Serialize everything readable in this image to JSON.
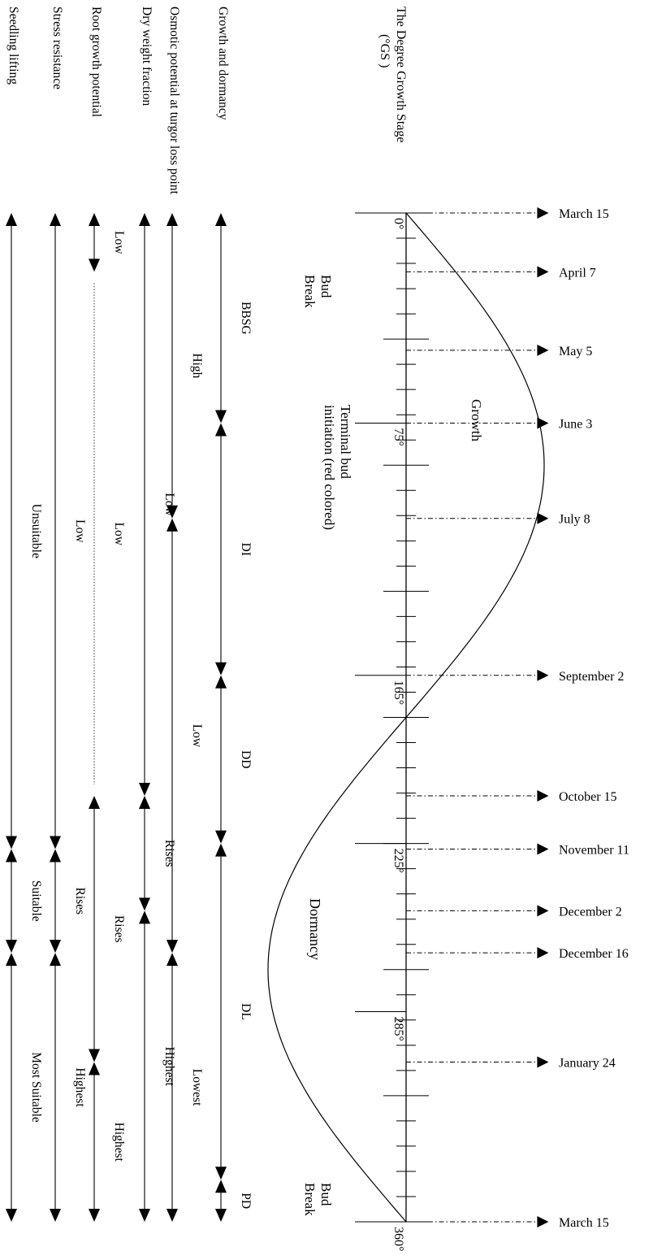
{
  "degree_axis": {
    "title_line1": "The Degree Growth  Stage",
    "title_line2": "(°GS )",
    "ticks": [
      {
        "deg": 0,
        "label": "0°"
      },
      {
        "deg": 75,
        "label": "75°"
      },
      {
        "deg": 165,
        "label": "165°"
      },
      {
        "deg": 225,
        "label": "225°"
      },
      {
        "deg": 285,
        "label": "285°"
      },
      {
        "deg": 360,
        "label": "360°"
      }
    ]
  },
  "dates": [
    {
      "deg": 0,
      "label": "March 15"
    },
    {
      "deg": 21,
      "label": "April 7"
    },
    {
      "deg": 49,
      "label": "May 5"
    },
    {
      "deg": 75,
      "label": "June 3"
    },
    {
      "deg": 109,
      "label": "July 8"
    },
    {
      "deg": 165,
      "label": "September 2"
    },
    {
      "deg": 208,
      "label": "October 15"
    },
    {
      "deg": 227,
      "label": "November 11"
    },
    {
      "deg": 249,
      "label": "December 2"
    },
    {
      "deg": 264,
      "label": "December 16"
    },
    {
      "deg": 303,
      "label": "January 24"
    },
    {
      "deg": 360,
      "label": "March 15"
    }
  ],
  "curve_labels": {
    "bud_break": [
      "Bud",
      "Break"
    ],
    "terminal_bud": [
      "Terminal bud",
      "initiation (red colored)"
    ],
    "growth": "Growth",
    "dormancy": "Dormancy"
  },
  "rows": [
    {
      "label": "Growth and dormancy",
      "segments": [
        {
          "from": 0,
          "to": 75,
          "label": "BBSG"
        },
        {
          "from": 75,
          "to": 165,
          "label": "DI"
        },
        {
          "from": 165,
          "to": 225,
          "label": "DD"
        },
        {
          "from": 225,
          "to": 345,
          "label": "DL"
        },
        {
          "from": 345,
          "to": 360,
          "label": "PD"
        }
      ]
    },
    {
      "label": "Osmotic potential at turgor loss point",
      "segments": [
        {
          "from": 0,
          "to": 109,
          "label": "High"
        },
        {
          "from": 109,
          "to": 264,
          "label": "Low"
        },
        {
          "from": 264,
          "to": 360,
          "label": "Lowest"
        }
      ]
    },
    {
      "label": "Dry weight fraction",
      "segments": [
        {
          "from": 0,
          "to": 208,
          "label": "Low"
        },
        {
          "from": 208,
          "to": 249,
          "label": "Rises"
        },
        {
          "from": 249,
          "to": 360,
          "label": "Highest"
        }
      ]
    },
    {
      "label": "Root growth potential",
      "segments": [
        {
          "from": 0,
          "to": 21,
          "label": "Low"
        },
        {
          "from": 21,
          "to": 208,
          "label": "Low",
          "dotted": true
        },
        {
          "from": 208,
          "to": 303,
          "label": "Rises"
        },
        {
          "from": 303,
          "to": 360,
          "label": "Highest"
        }
      ]
    },
    {
      "label": "Stress resistance",
      "segments": [
        {
          "from": 0,
          "to": 227,
          "label": "Low"
        },
        {
          "from": 227,
          "to": 264,
          "label": "Rises"
        },
        {
          "from": 264,
          "to": 360,
          "label": "Highest"
        }
      ]
    },
    {
      "label": "Seedling lifting",
      "segments": [
        {
          "from": 0,
          "to": 227,
          "label": "Unsuitable"
        },
        {
          "from": 227,
          "to": 264,
          "label": "Suitable"
        },
        {
          "from": 264,
          "to": 360,
          "label": "Most Suitable"
        }
      ]
    }
  ]
}
